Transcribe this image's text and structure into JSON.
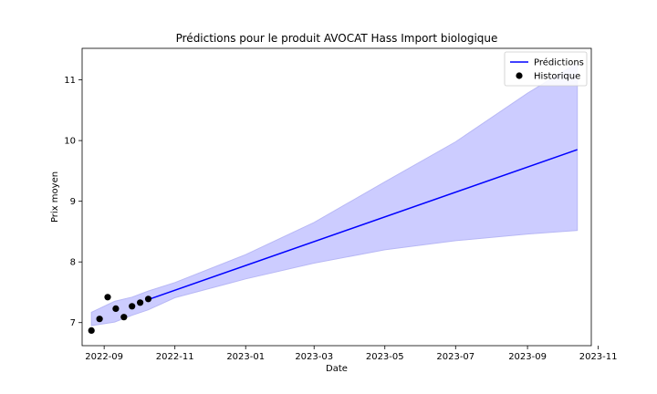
{
  "chart_data": {
    "type": "line",
    "title": "Prédictions pour le produit AVOCAT Hass Import biologique",
    "xlabel": "Date",
    "ylabel": "Prix moyen",
    "x_type": "date",
    "xlim": [
      "2022-08-13",
      "2023-10-26"
    ],
    "ylim": [
      6.62,
      11.52
    ],
    "x_ticks": [
      "2022-09-01",
      "2022-11-01",
      "2023-01-01",
      "2023-03-01",
      "2023-05-01",
      "2023-07-01",
      "2023-09-01",
      "2023-11-01"
    ],
    "x_tick_labels": [
      "2022-09",
      "2022-11",
      "2023-01",
      "2023-03",
      "2023-05",
      "2023-07",
      "2023-09",
      "2023-11"
    ],
    "y_ticks": [
      7,
      8,
      9,
      10,
      11
    ],
    "y_tick_labels": [
      "7",
      "8",
      "9",
      "10",
      "11"
    ],
    "grid": false,
    "legend": "top-right",
    "series": [
      {
        "name": "Prédictions",
        "kind": "line",
        "color": "#0000ff",
        "x": [
          "2022-10-09",
          "2023-10-14"
        ],
        "y": [
          7.38,
          9.85
        ]
      },
      {
        "name": "Historique",
        "kind": "scatter",
        "color": "#000000",
        "x": [
          "2022-08-21",
          "2022-08-28",
          "2022-09-04",
          "2022-09-11",
          "2022-09-18",
          "2022-09-25",
          "2022-10-02",
          "2022-10-09"
        ],
        "y": [
          6.87,
          7.06,
          7.42,
          7.23,
          7.09,
          7.27,
          7.33,
          7.39
        ]
      }
    ],
    "interval": {
      "color": "#ccccff",
      "x": [
        "2022-08-21",
        "2022-09-10",
        "2022-09-25",
        "2022-10-09",
        "2022-11-01",
        "2023-01-01",
        "2023-03-01",
        "2023-05-01",
        "2023-07-01",
        "2023-09-01",
        "2023-10-14"
      ],
      "upper": [
        7.17,
        7.35,
        7.42,
        7.52,
        7.66,
        8.12,
        8.65,
        9.32,
        9.98,
        10.78,
        11.28
      ],
      "lower": [
        6.95,
        7.01,
        7.12,
        7.21,
        7.41,
        7.72,
        7.98,
        8.2,
        8.35,
        8.46,
        8.52
      ]
    }
  }
}
